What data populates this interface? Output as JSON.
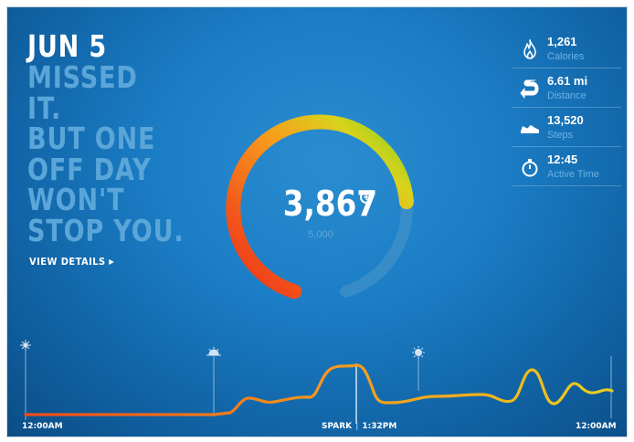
{
  "header": {
    "date": "JUN 5",
    "message_lines": [
      "MISSED",
      "IT.",
      "BUT ONE",
      "OFF DAY",
      "WON'T",
      "STOP YOU."
    ],
    "view_details": "VIEW DETAILS"
  },
  "fuel": {
    "value": "3,867",
    "goal": "5,000",
    "progress_fraction": 0.7734
  },
  "stats": [
    {
      "icon": "flame-icon",
      "value": "1,261",
      "label": "Calories"
    },
    {
      "icon": "distance-road-icon",
      "value": "6.61 mi",
      "label": "Distance"
    },
    {
      "icon": "shoe-icon",
      "value": "13,520",
      "label": "Steps"
    },
    {
      "icon": "stopwatch-icon",
      "value": "12:45",
      "label": "Active Time"
    }
  ],
  "timeline": {
    "start_label": "12:00AM",
    "spark_label": "SPARK",
    "spark_time": "1:32PM",
    "end_label": "12:00AM",
    "markers": [
      "night-icon",
      "sunrise-icon",
      "sun-icon",
      "moon-icon"
    ]
  },
  "colors": {
    "background": "#1b7dc5",
    "ring_red": "#f0301a",
    "ring_orange": "#f89a1c",
    "ring_green": "#7fd11f"
  }
}
